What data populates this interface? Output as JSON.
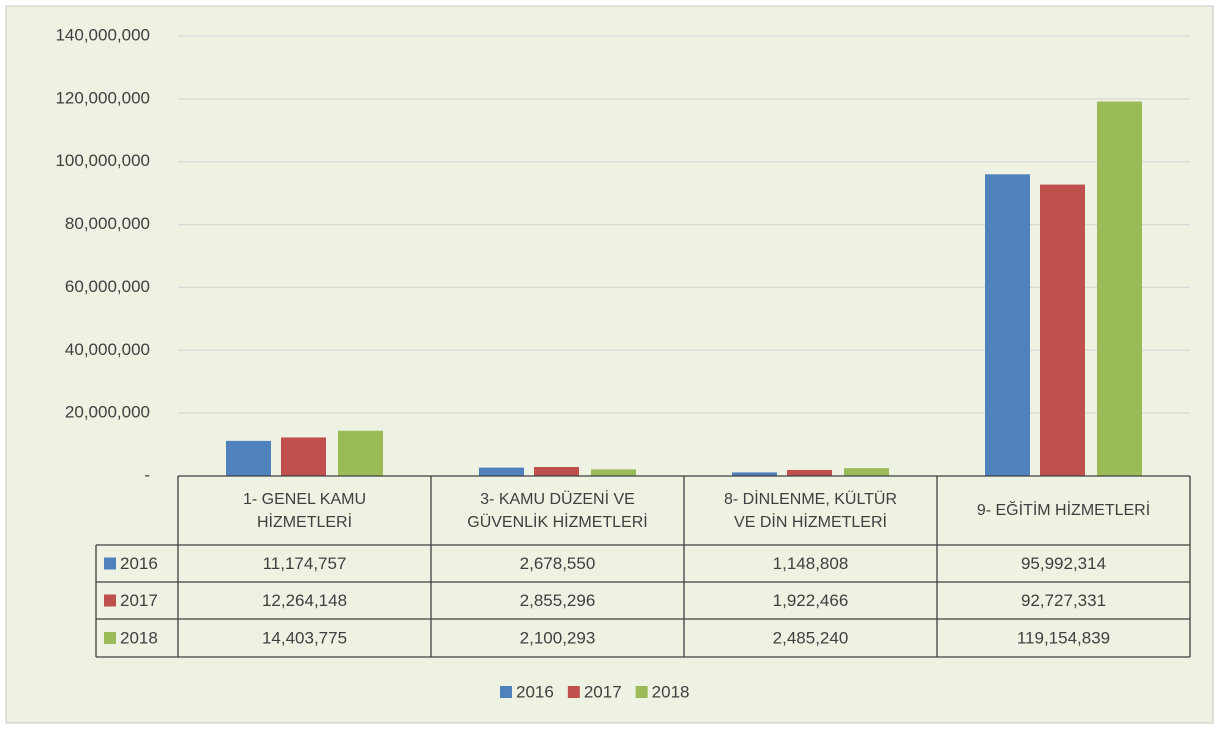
{
  "chart_data": {
    "type": "bar",
    "categories": [
      "1- GENEL KAMU HİZMETLERİ",
      "3- KAMU DÜZENİ VE GÜVENLİK HİZMETLERİ",
      "8- DİNLENME, KÜLTÜR VE DİN HİZMETLERİ",
      "9- EĞİTİM HİZMETLERİ"
    ],
    "series": [
      {
        "name": "2016",
        "color": "#4f81bd",
        "values": [
          11174757,
          2678550,
          1148808,
          95992314
        ],
        "value_labels": [
          "11,174,757",
          "2,678,550",
          "1,148,808",
          "95,992,314"
        ]
      },
      {
        "name": "2017",
        "color": "#c0504d",
        "values": [
          12264148,
          2855296,
          1922466,
          92727331
        ],
        "value_labels": [
          "12,264,148",
          "2,855,296",
          "1,922,466",
          "92,727,331"
        ]
      },
      {
        "name": "2018",
        "color": "#9bbb59",
        "values": [
          14403775,
          2100293,
          2485240,
          119154839
        ],
        "value_labels": [
          "14,403,775",
          "2,100,293",
          "2,485,240",
          "119,154,839"
        ]
      }
    ],
    "ylim": [
      0,
      140000000
    ],
    "yticks": [
      {
        "value": 0,
        "label": "-"
      },
      {
        "value": 20000000,
        "label": "20,000,000"
      },
      {
        "value": 40000000,
        "label": "40,000,000"
      },
      {
        "value": 60000000,
        "label": "60,000,000"
      },
      {
        "value": 80000000,
        "label": "80,000,000"
      },
      {
        "value": 100000000,
        "label": "100,000,000"
      },
      {
        "value": 120000000,
        "label": "120,000,000"
      },
      {
        "value": 140000000,
        "label": "140,000,000"
      }
    ],
    "grid": true,
    "legend": "bottom"
  }
}
